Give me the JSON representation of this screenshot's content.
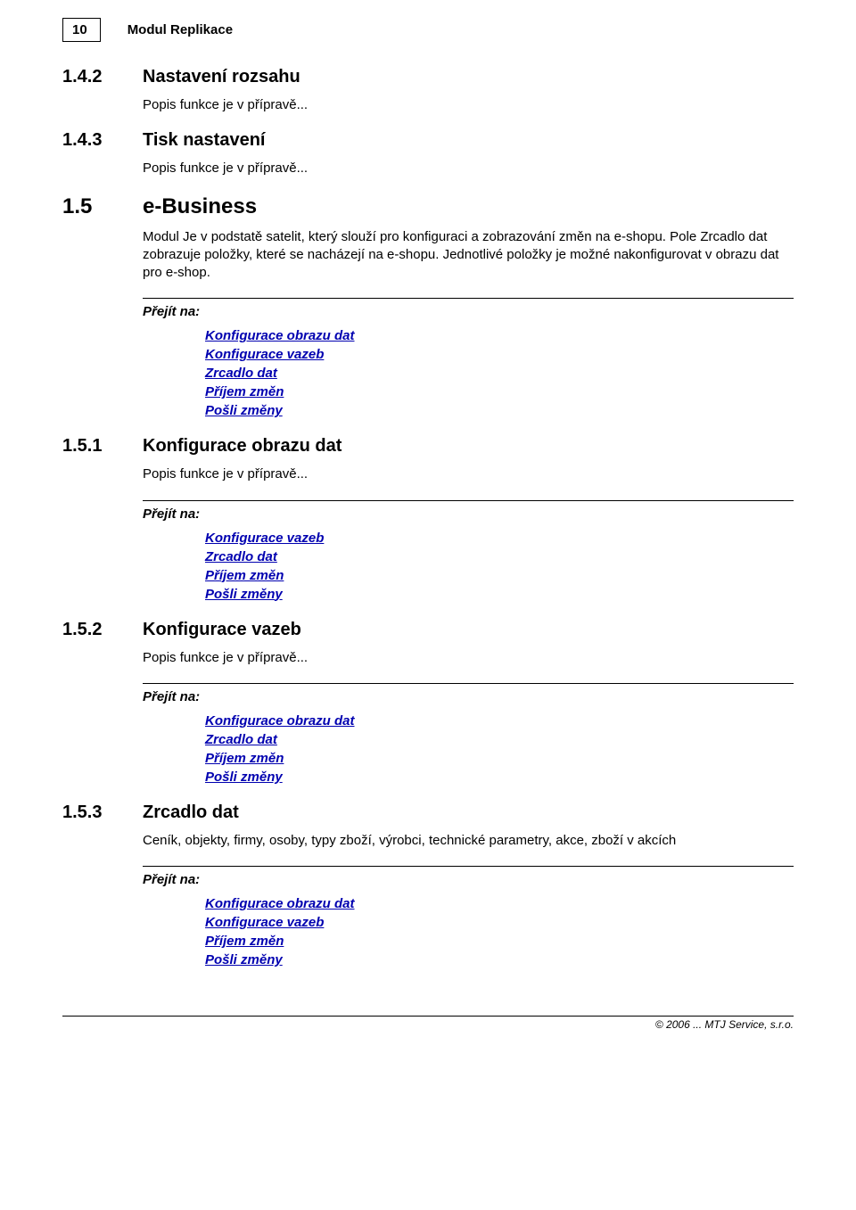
{
  "header": {
    "page_number": "10",
    "title": "Modul Replikace"
  },
  "sections": [
    {
      "num": "1.4.2",
      "title": "Nastavení rozsahu",
      "big": false,
      "body": "Popis funkce je v přípravě..."
    },
    {
      "num": "1.4.3",
      "title": "Tisk nastavení",
      "big": false,
      "body": "Popis funkce je v přípravě..."
    },
    {
      "num": "1.5",
      "title": "e-Business",
      "big": true,
      "body": "Modul Je v podstatě satelit, který slouží pro konfiguraci a zobrazování změn na e-shopu. Pole Zrcadlo dat zobrazuje položky, které se nacházejí na e-shopu. Jednotlivé položky je možné nakonfigurovat v obrazu dat pro e-shop.",
      "goto": [
        "Konfigurace obrazu dat",
        "Konfigurace vazeb",
        "Zrcadlo dat",
        "Příjem změn",
        "Pošli změny"
      ]
    },
    {
      "num": "1.5.1",
      "title": "Konfigurace obrazu dat",
      "big": false,
      "body": "Popis funkce je v přípravě...",
      "goto": [
        "Konfigurace vazeb",
        "Zrcadlo dat",
        "Příjem změn",
        "Pošli změny"
      ]
    },
    {
      "num": "1.5.2",
      "title": "Konfigurace vazeb",
      "big": false,
      "body": "Popis funkce je v přípravě...",
      "goto": [
        "Konfigurace obrazu dat",
        "Zrcadlo dat",
        "Příjem změn",
        "Pošli změny"
      ]
    },
    {
      "num": "1.5.3",
      "title": "Zrcadlo dat",
      "big": false,
      "body": "Ceník, objekty, firmy, osoby, typy zboží, výrobci, technické parametry, akce, zboží v akcích",
      "goto": [
        "Konfigurace obrazu dat",
        "Konfigurace vazeb",
        "Příjem změn",
        "Pošli změny"
      ]
    }
  ],
  "goto_label": "Přejít na:",
  "footer": "© 2006 ... MTJ Service, s.r.o.",
  "colors": {
    "link": "#0000b0",
    "text": "#000000",
    "background": "#ffffff",
    "border": "#000000"
  }
}
